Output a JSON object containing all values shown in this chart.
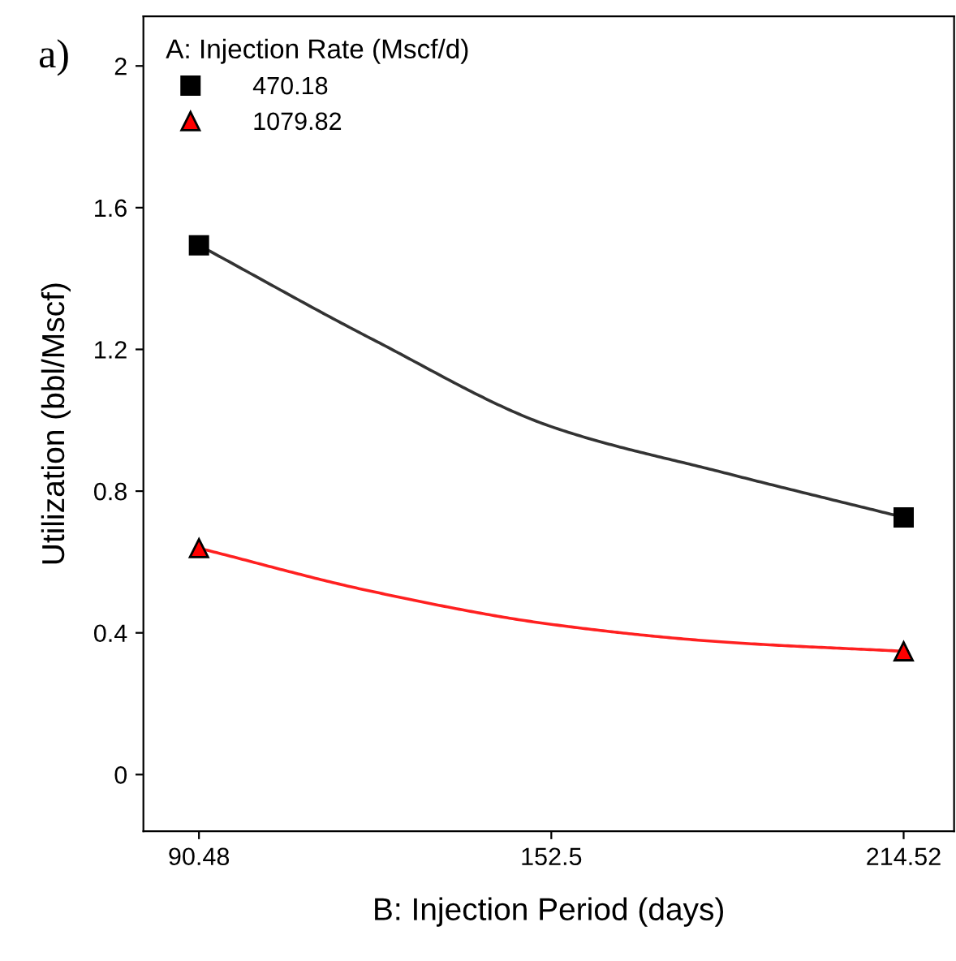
{
  "chart_data": {
    "type": "line",
    "xlabel": "B: Injection Period (days)",
    "ylabel": "Utilization (bbl/Mscf)",
    "legend_title": "A: Injection Rate (Mscf/d)",
    "annotations": [
      "a)"
    ],
    "series": [
      {
        "color": "#333333",
        "x": [
          90.48,
          121.2,
          152.5,
          182.9,
          214.52
        ],
        "values": [
          1.494,
          1.227,
          0.982,
          0.852,
          0.726
        ]
      },
      {
        "color": "#ff2020",
        "x": [
          90.48,
          121.2,
          152.5,
          182.9,
          214.52
        ],
        "values": [
          0.639,
          0.516,
          0.424,
          0.374,
          0.348
        ]
      },
      {
        "type": "scatter",
        "name": "470.18",
        "color": "#000000",
        "marker": "square",
        "x": [
          90.48,
          214.52
        ],
        "values": [
          1.494,
          0.726
        ]
      },
      {
        "type": "scatter",
        "name": "1079.82",
        "color": "#ff0000",
        "marker": "triangle",
        "x": [
          90.48,
          214.52
        ],
        "values": [
          0.639,
          0.348
        ]
      }
    ],
    "xlim": [
      80.7,
      223.4
    ],
    "xticks": [
      90.48,
      152.5,
      214.52
    ],
    "ylim": [
      -0.16,
      2.14
    ],
    "yticks": [
      0,
      0.4,
      0.8,
      1.2,
      1.6,
      2
    ],
    "grid": false,
    "legend": "top left"
  }
}
